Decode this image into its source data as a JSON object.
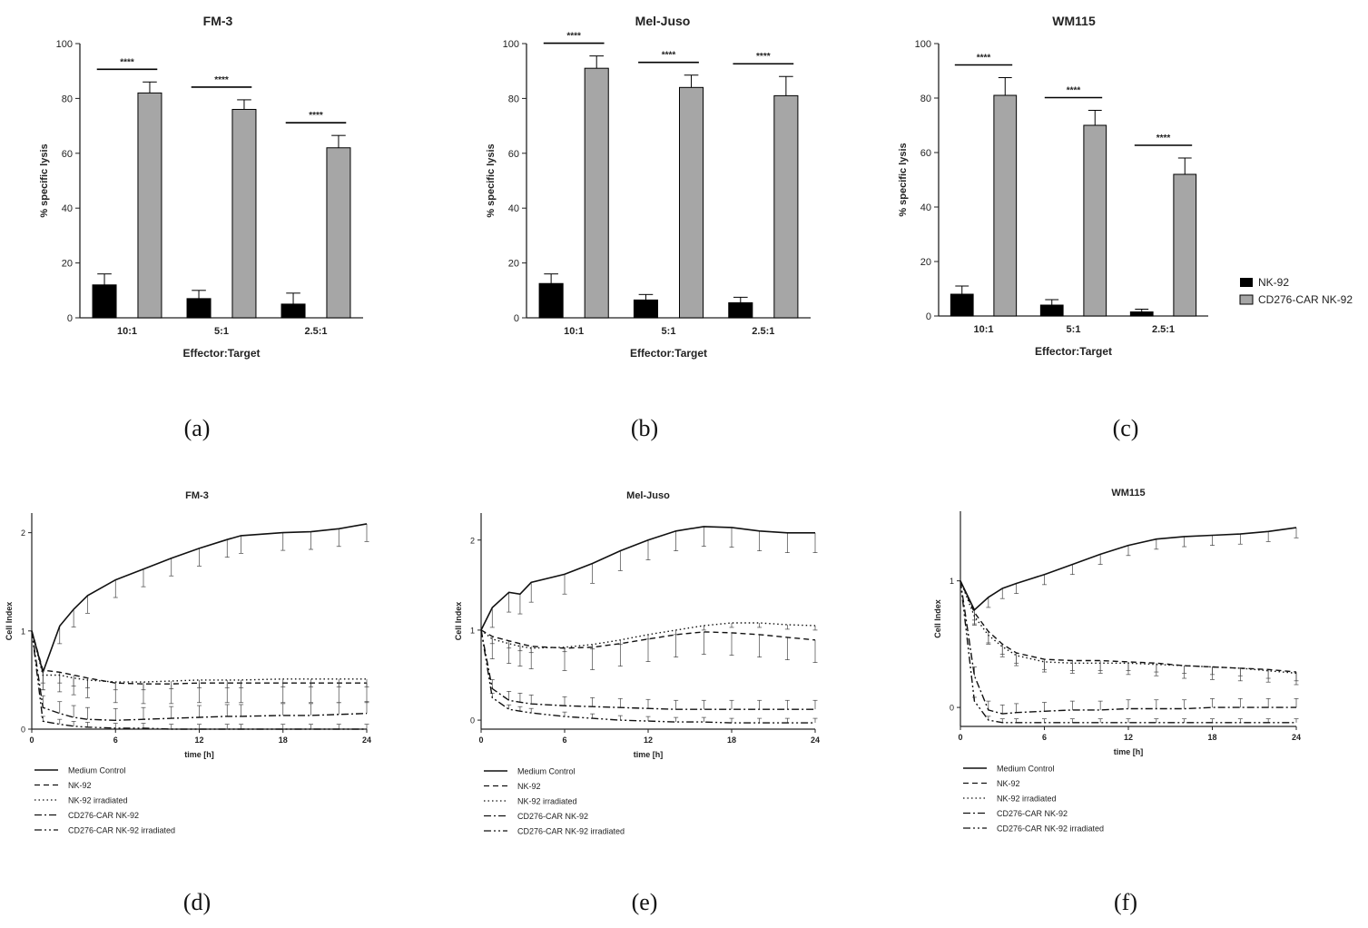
{
  "colors": {
    "nk92": "#000000",
    "car": "#a6a6a6",
    "axis": "#222222"
  },
  "panel_labels": [
    "(a)",
    "(b)",
    "(c)",
    "(d)",
    "(e)",
    "(f)"
  ],
  "bar_legend": [
    "NK-92",
    "CD276-CAR NK-92"
  ],
  "line_legend": [
    "Medium Control",
    "NK-92",
    "NK-92 irradiated",
    "CD276-CAR NK-92",
    "CD276-CAR NK-92 irradiated"
  ],
  "chart_data": [
    {
      "type": "bar",
      "title": "FM-3",
      "xlabel": "Effector:Target",
      "ylabel": "% specific lysis",
      "ylim": [
        0,
        100
      ],
      "yticks": [
        0,
        20,
        40,
        60,
        80,
        100
      ],
      "categories": [
        "10:1",
        "5:1",
        "2.5:1"
      ],
      "series": [
        {
          "name": "NK-92",
          "values": [
            12,
            7,
            5
          ],
          "errors": [
            4,
            3,
            4
          ]
        },
        {
          "name": "CD276-CAR NK-92",
          "values": [
            82,
            76,
            62
          ],
          "errors": [
            4,
            3.5,
            4.5
          ]
        }
      ],
      "significance": [
        "****",
        "****",
        "****"
      ]
    },
    {
      "type": "bar",
      "title": "Mel-Juso",
      "xlabel": "Effector:Target",
      "ylabel": "% specific lysis",
      "ylim": [
        0,
        100
      ],
      "yticks": [
        0,
        20,
        40,
        60,
        80,
        100
      ],
      "categories": [
        "10:1",
        "5:1",
        "2.5:1"
      ],
      "series": [
        {
          "name": "NK-92",
          "values": [
            12.5,
            6.5,
            5.5
          ],
          "errors": [
            3.5,
            2,
            2
          ]
        },
        {
          "name": "CD276-CAR NK-92",
          "values": [
            91,
            84,
            81
          ],
          "errors": [
            4.5,
            4.5,
            7
          ]
        }
      ],
      "significance": [
        "****",
        "****",
        "****"
      ]
    },
    {
      "type": "bar",
      "title": "WM115",
      "xlabel": "Effector:Target",
      "ylabel": "% specific lysis",
      "ylim": [
        0,
        100
      ],
      "yticks": [
        0,
        20,
        40,
        60,
        80,
        100
      ],
      "categories": [
        "10:1",
        "5:1",
        "2.5:1"
      ],
      "series": [
        {
          "name": "NK-92",
          "values": [
            8,
            4,
            1.5
          ],
          "errors": [
            3,
            2,
            1
          ]
        },
        {
          "name": "CD276-CAR NK-92",
          "values": [
            81,
            70,
            52
          ],
          "errors": [
            6.5,
            5.5,
            6
          ]
        }
      ],
      "significance": [
        "****",
        "****",
        "****"
      ]
    },
    {
      "type": "line",
      "title": "FM-3",
      "xlabel": "time [h]",
      "ylabel": "Cell Index",
      "xlim": [
        0,
        24
      ],
      "ylim": [
        0,
        2.2
      ],
      "xticks": [
        0,
        6,
        12,
        18,
        24
      ],
      "yticks": [
        0,
        1,
        2
      ],
      "x": [
        0,
        0.8,
        2,
        3,
        4,
        6,
        8,
        10,
        12,
        14,
        15,
        18,
        20,
        22,
        24
      ],
      "series": [
        {
          "name": "Medium Control",
          "values": [
            1.0,
            0.58,
            1.05,
            1.22,
            1.36,
            1.52,
            1.63,
            1.74,
            1.84,
            1.93,
            1.97,
            2.0,
            2.01,
            2.04,
            2.09
          ],
          "error": 0.18
        },
        {
          "name": "NK-92",
          "values": [
            1.0,
            0.6,
            0.58,
            0.55,
            0.52,
            0.47,
            0.46,
            0.46,
            0.47,
            0.47,
            0.47,
            0.47,
            0.47,
            0.47,
            0.47
          ],
          "error": 0.2
        },
        {
          "name": "NK-92 irradiated",
          "values": [
            1.0,
            0.55,
            0.55,
            0.52,
            0.5,
            0.48,
            0.48,
            0.49,
            0.5,
            0.5,
            0.5,
            0.51,
            0.51,
            0.51,
            0.51
          ],
          "error": 0.08
        },
        {
          "name": "CD276-CAR NK-92",
          "values": [
            1.0,
            0.22,
            0.16,
            0.12,
            0.1,
            0.09,
            0.1,
            0.11,
            0.12,
            0.13,
            0.13,
            0.14,
            0.14,
            0.15,
            0.16
          ],
          "error": 0.12
        },
        {
          "name": "CD276-CAR NK-92 irradiated",
          "values": [
            1.0,
            0.08,
            0.05,
            0.03,
            0.02,
            0.01,
            0.01,
            0.0,
            0.0,
            0.0,
            0.0,
            0.0,
            0.0,
            0.0,
            0.0
          ],
          "error": 0.05
        }
      ]
    },
    {
      "type": "line",
      "title": "Mel-Juso",
      "xlabel": "time [h]",
      "ylabel": "Cell Index",
      "xlim": [
        0,
        24
      ],
      "ylim": [
        -0.1,
        2.3
      ],
      "xticks": [
        0,
        6,
        12,
        18,
        24
      ],
      "yticks": [
        0,
        1,
        2
      ],
      "x": [
        0,
        0.8,
        2,
        2.8,
        3.6,
        6,
        8,
        10,
        12,
        14,
        16,
        18,
        20,
        22,
        24
      ],
      "series": [
        {
          "name": "Medium Control",
          "values": [
            1.0,
            1.25,
            1.42,
            1.4,
            1.53,
            1.62,
            1.74,
            1.88,
            2.0,
            2.1,
            2.15,
            2.14,
            2.1,
            2.08,
            2.08
          ],
          "error": 0.22
        },
        {
          "name": "NK-92",
          "values": [
            1.0,
            0.93,
            0.88,
            0.85,
            0.82,
            0.8,
            0.81,
            0.85,
            0.9,
            0.95,
            0.98,
            0.97,
            0.95,
            0.92,
            0.89
          ],
          "error": 0.25
        },
        {
          "name": "NK-92 irradiated",
          "values": [
            1.0,
            0.9,
            0.85,
            0.82,
            0.8,
            0.81,
            0.84,
            0.89,
            0.95,
            1.0,
            1.05,
            1.08,
            1.08,
            1.06,
            1.05
          ],
          "error": 0.05
        },
        {
          "name": "CD276-CAR NK-92",
          "values": [
            1.0,
            0.35,
            0.22,
            0.2,
            0.18,
            0.16,
            0.15,
            0.14,
            0.13,
            0.12,
            0.12,
            0.12,
            0.12,
            0.12,
            0.12
          ],
          "error": 0.1
        },
        {
          "name": "CD276-CAR NK-92 irradiated",
          "values": [
            1.0,
            0.25,
            0.12,
            0.1,
            0.08,
            0.04,
            0.02,
            0.0,
            -0.01,
            -0.02,
            -0.02,
            -0.03,
            -0.03,
            -0.03,
            -0.03
          ],
          "error": 0.05
        }
      ]
    },
    {
      "type": "line",
      "title": "WM115",
      "xlabel": "time [h]",
      "ylabel": "Cell Index",
      "xlim": [
        0,
        24
      ],
      "ylim": [
        -0.15,
        1.55
      ],
      "xticks": [
        0,
        6,
        12,
        18,
        24
      ],
      "yticks": [
        0,
        1
      ],
      "x": [
        0,
        1,
        2,
        3,
        4,
        6,
        8,
        10,
        12,
        14,
        16,
        18,
        20,
        22,
        24
      ],
      "series": [
        {
          "name": "Medium Control",
          "values": [
            1.0,
            0.77,
            0.87,
            0.94,
            0.98,
            1.05,
            1.13,
            1.21,
            1.28,
            1.33,
            1.35,
            1.36,
            1.37,
            1.39,
            1.42
          ],
          "error": 0.08
        },
        {
          "name": "NK-92",
          "values": [
            1.0,
            0.75,
            0.6,
            0.5,
            0.43,
            0.38,
            0.37,
            0.37,
            0.36,
            0.35,
            0.33,
            0.32,
            0.31,
            0.3,
            0.28
          ],
          "error": 0.1
        },
        {
          "name": "NK-92 irradiated",
          "values": [
            1.0,
            0.72,
            0.57,
            0.48,
            0.41,
            0.36,
            0.35,
            0.35,
            0.35,
            0.34,
            0.33,
            0.32,
            0.31,
            0.29,
            0.27
          ],
          "error": 0.06
        },
        {
          "name": "CD276-CAR NK-92",
          "values": [
            1.0,
            0.25,
            -0.02,
            -0.05,
            -0.04,
            -0.03,
            -0.02,
            -0.02,
            -0.01,
            -0.01,
            -0.01,
            0.0,
            0.0,
            0.0,
            0.0
          ],
          "error": 0.07
        },
        {
          "name": "CD276-CAR NK-92 irradiated",
          "values": [
            1.0,
            0.05,
            -0.1,
            -0.12,
            -0.12,
            -0.12,
            -0.12,
            -0.12,
            -0.12,
            -0.12,
            -0.12,
            -0.12,
            -0.12,
            -0.12,
            -0.12
          ],
          "error": 0.03
        }
      ]
    }
  ]
}
